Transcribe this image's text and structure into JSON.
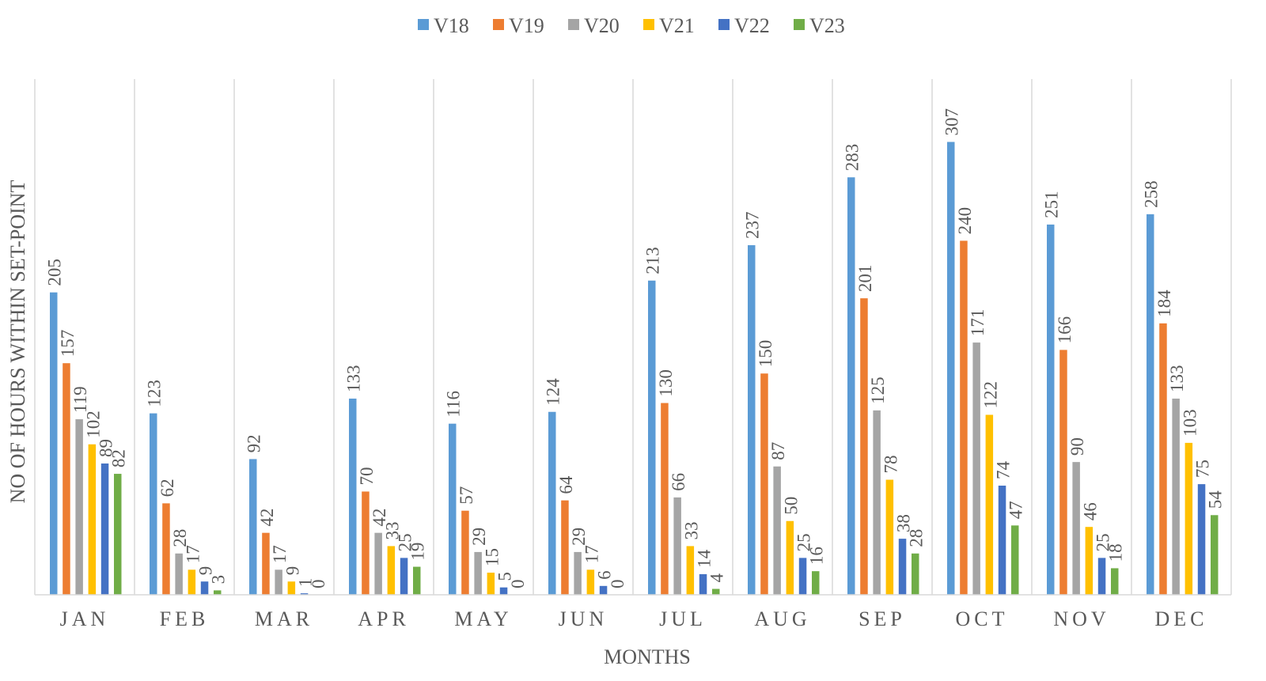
{
  "chart_data": {
    "type": "bar",
    "title": "",
    "xlabel": "MONTHS",
    "ylabel": "NO OF HOURS WITHIN SET-POINT",
    "ylim": [
      0,
      350
    ],
    "grid": "vertical category separators",
    "legend_position": "top",
    "categories": [
      "JAN",
      "FEB",
      "MAR",
      "APR",
      "MAY",
      "JUN",
      "JUL",
      "AUG",
      "SEP",
      "OCT",
      "NOV",
      "DEC"
    ],
    "series": [
      {
        "name": "V18",
        "color": "#5b9bd5",
        "values": [
          205,
          123,
          92,
          133,
          116,
          124,
          213,
          237,
          283,
          307,
          251,
          258
        ]
      },
      {
        "name": "V19",
        "color": "#ed7d31",
        "values": [
          157,
          62,
          42,
          70,
          57,
          64,
          130,
          150,
          201,
          240,
          166,
          184
        ]
      },
      {
        "name": "V20",
        "color": "#a5a5a5",
        "values": [
          119,
          28,
          17,
          42,
          29,
          29,
          66,
          87,
          125,
          171,
          90,
          133
        ]
      },
      {
        "name": "V21",
        "color": "#ffc000",
        "values": [
          102,
          17,
          9,
          33,
          15,
          17,
          33,
          50,
          78,
          122,
          46,
          103
        ]
      },
      {
        "name": "V22",
        "color": "#4472c4",
        "values": [
          89,
          9,
          1,
          25,
          5,
          6,
          14,
          25,
          38,
          74,
          25,
          75
        ]
      },
      {
        "name": "V23",
        "color": "#70ad47",
        "values": [
          82,
          3,
          0,
          19,
          0,
          0,
          4,
          16,
          28,
          47,
          18,
          54
        ]
      }
    ]
  }
}
